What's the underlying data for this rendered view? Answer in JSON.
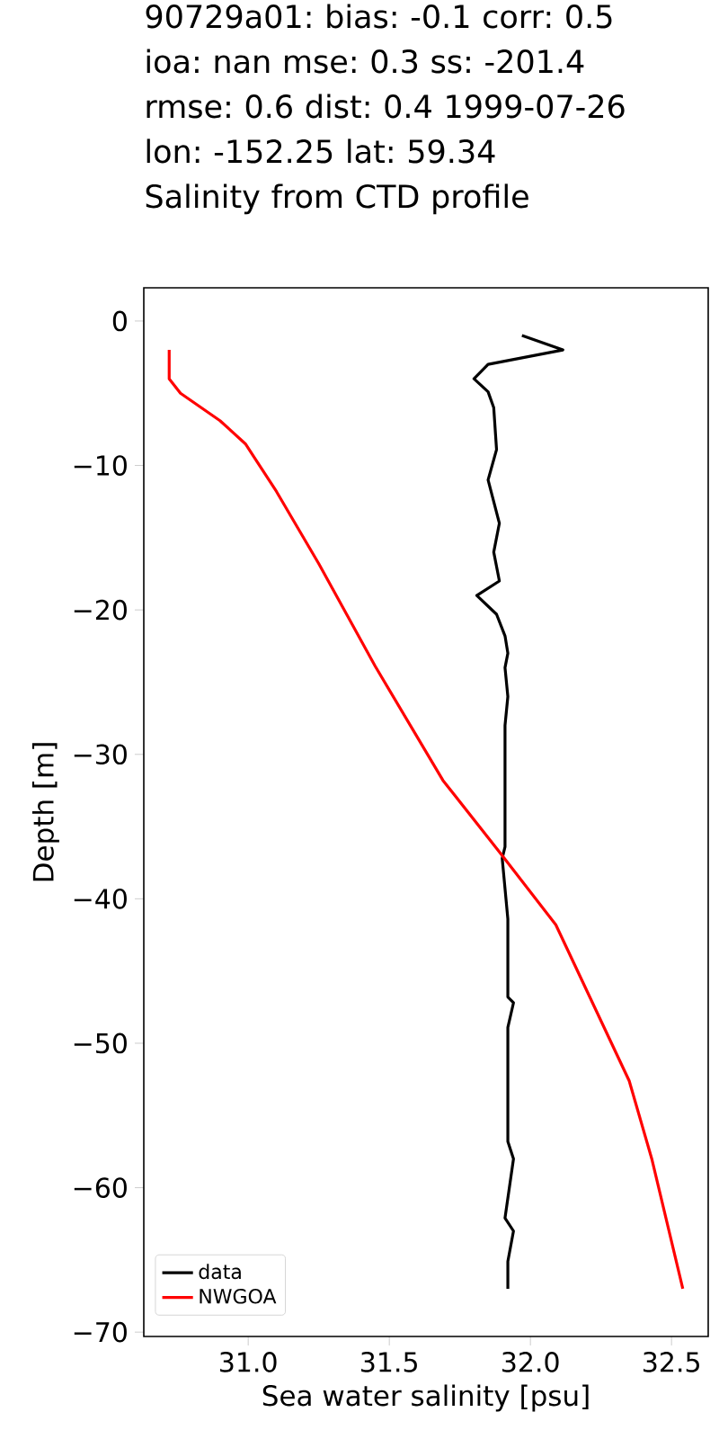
{
  "chart_data": {
    "type": "line",
    "title": "90729a01: bias: -0.1  corr: 0.5  ioa: nan  mse: 0.3  ss: -201.4  rmse: 0.6  dist: 0.4 1999-07-26 lon: -152.25 lat: 59.34",
    "subtitle": "Salinity from CTD profile",
    "xlabel": "Sea water salinity [psu]",
    "ylabel": "Depth [m]",
    "series": [
      {
        "name": "data",
        "color": "#000000",
        "x": [
          31.97,
          32.115,
          31.85,
          31.8,
          31.85,
          31.87,
          31.88,
          31.85,
          31.89,
          31.87,
          31.89,
          31.81,
          31.88,
          31.91,
          31.92,
          31.91,
          31.92,
          31.91,
          31.91,
          31.9,
          31.92,
          31.92,
          31.94,
          31.92,
          31.92,
          31.94,
          31.91,
          31.94,
          31.92,
          31.92
        ],
        "values": [
          -1,
          -2,
          -3,
          -4,
          -4.9,
          -6,
          -8.9,
          -11,
          -14,
          -16,
          -18,
          -19,
          -20.3,
          -21.8,
          -23,
          -24,
          -26,
          -28,
          -36.4,
          -37.2,
          -41.4,
          -46.8,
          -47.2,
          -48.9,
          -56.8,
          -58,
          -62.1,
          -63,
          -65.1,
          -67
        ]
      },
      {
        "name": "NWGOA",
        "color": "#ff0000",
        "x": [
          30.72,
          30.72,
          30.76,
          30.9,
          30.99,
          31.1,
          31.25,
          31.45,
          31.69,
          31.9,
          32.09,
          32.35,
          32.43,
          32.54
        ],
        "values": [
          -2,
          -4,
          -5,
          -6.9,
          -8.5,
          -11.8,
          -16.8,
          -23.9,
          -31.8,
          -37,
          -41.8,
          -52.6,
          -58,
          -67
        ]
      }
    ],
    "xlim": [
      30.63,
      32.63
    ],
    "ylim": [
      -70.3,
      2.3
    ],
    "xticks": [
      {
        "value": 31,
        "label": "31.0"
      },
      {
        "value": 31.5,
        "label": "31.5"
      },
      {
        "value": 32,
        "label": "32.0"
      },
      {
        "value": 32.5,
        "label": "32.5"
      }
    ],
    "yticks": [
      0,
      {
        "value": -10,
        "label": "−10"
      },
      {
        "value": -20,
        "label": "−20"
      },
      {
        "value": -30,
        "label": "−30"
      },
      {
        "value": -40,
        "label": "−40"
      },
      {
        "value": -50,
        "label": "−50"
      },
      {
        "value": -60,
        "label": "−60"
      },
      {
        "value": -70,
        "label": "−70"
      }
    ],
    "legend": "bottom left",
    "grid": false,
    "marker": "none",
    "line_style": "solid"
  }
}
